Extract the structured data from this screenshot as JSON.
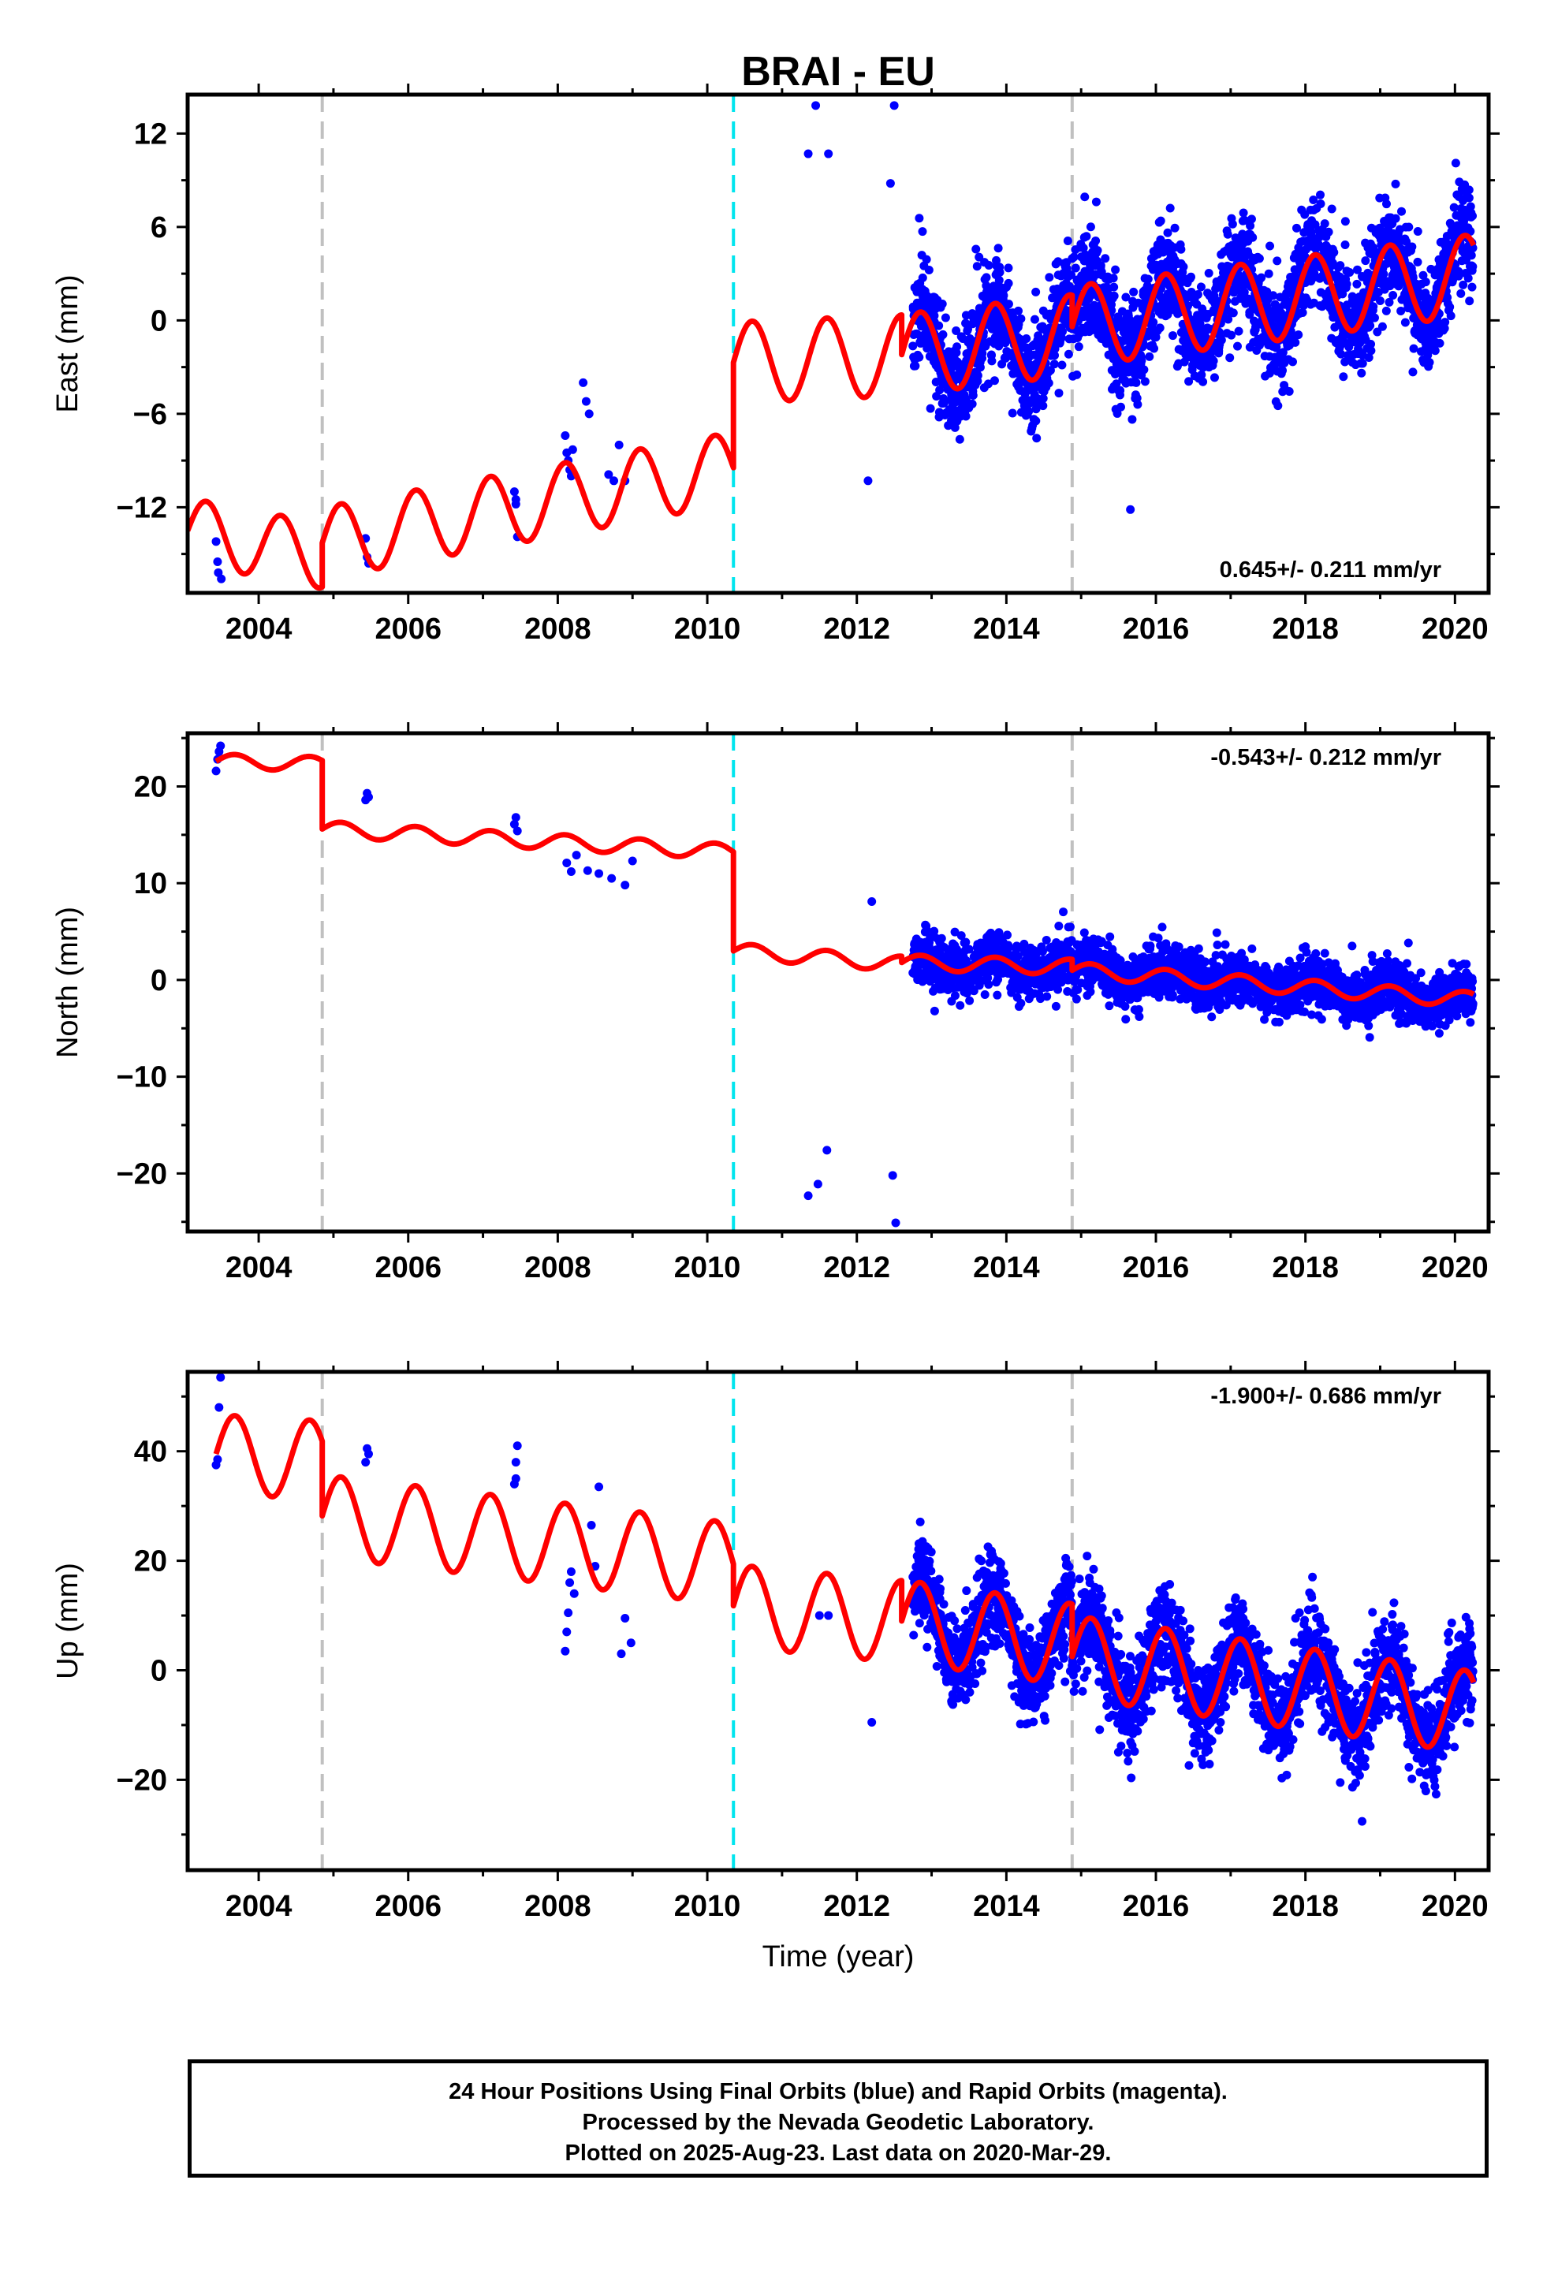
{
  "chart_data": [
    {
      "type": "scatter",
      "id": "east",
      "title": "BRAI - EU",
      "xlabel": "",
      "ylabel": "East (mm)",
      "xlim": [
        2003.05,
        2020.45
      ],
      "ylim": [
        -17.5,
        14.5
      ],
      "xticks": [
        2004,
        2006,
        2008,
        2010,
        2012,
        2014,
        2016,
        2018,
        2020
      ],
      "yticks": [
        -12,
        -6,
        0,
        6,
        12
      ],
      "rate_text": "0.645+/- 0.211 mm/yr",
      "rate_position": "bottom-right",
      "event_lines": [
        {
          "x": 2004.85,
          "style": "gray-dashed"
        },
        {
          "x": 2010.35,
          "style": "cyan-dashed"
        },
        {
          "x": 2014.88,
          "style": "gray-dashed"
        }
      ],
      "model": {
        "segments": [
          {
            "from": 2003.05,
            "to": 2004.85,
            "base_at_from": -13.5,
            "rate": -0.9,
            "amplitude": 2.1,
            "phase": 0.0
          },
          {
            "from": 2004.85,
            "to": 2010.35,
            "base_at_from": -14.3,
            "rate": 0.88,
            "amplitude": 2.3,
            "phase": 0.0
          },
          {
            "from": 2010.35,
            "to": 2012.6,
            "base_at_from": -2.7,
            "rate": 0.2,
            "amplitude": 2.6,
            "phase": 0.0
          },
          {
            "from": 2012.6,
            "to": 2014.88,
            "base_at_from": -2.2,
            "rate": 0.55,
            "amplitude": 2.6,
            "phase": 0.0
          },
          {
            "from": 2014.88,
            "to": 2020.25,
            "base_at_from": -0.4,
            "rate": 0.62,
            "amplitude": 2.6,
            "phase": 0.0
          }
        ]
      },
      "sparse_points": [
        [
          2003.43,
          -14.2
        ],
        [
          2003.45,
          -15.5
        ],
        [
          2003.46,
          -16.2
        ],
        [
          2003.5,
          -16.6
        ],
        [
          2005.43,
          -14.0
        ],
        [
          2005.45,
          -15.2
        ],
        [
          2005.47,
          -15.6
        ],
        [
          2007.42,
          -11.0
        ],
        [
          2007.44,
          -11.8
        ],
        [
          2007.46,
          -13.9
        ],
        [
          2007.44,
          -11.5
        ],
        [
          2008.1,
          -7.4
        ],
        [
          2008.12,
          -8.5
        ],
        [
          2008.14,
          -9.0
        ],
        [
          2008.16,
          -9.6
        ],
        [
          2008.18,
          -10.0
        ],
        [
          2008.2,
          -8.3
        ],
        [
          2008.34,
          -4.0
        ],
        [
          2008.38,
          -5.2
        ],
        [
          2008.42,
          -6.0
        ],
        [
          2008.68,
          -9.9
        ],
        [
          2008.75,
          -10.3
        ],
        [
          2008.82,
          -8.0
        ],
        [
          2008.9,
          -10.3
        ],
        [
          2011.35,
          10.7
        ],
        [
          2011.45,
          13.8
        ],
        [
          2011.62,
          10.7
        ],
        [
          2012.15,
          -10.3
        ],
        [
          2012.45,
          8.8
        ],
        [
          2012.5,
          13.8
        ]
      ],
      "dense_points": {
        "from": 2012.75,
        "to": 2020.24,
        "count": 2600,
        "scatter": 1.7,
        "seed": 11
      }
    },
    {
      "type": "scatter",
      "id": "north",
      "title": "",
      "xlabel": "",
      "ylabel": "North (mm)",
      "xlim": [
        2003.05,
        2020.45
      ],
      "ylim": [
        -26,
        25.5
      ],
      "xticks": [
        2004,
        2006,
        2008,
        2010,
        2012,
        2014,
        2016,
        2018,
        2020
      ],
      "yticks": [
        -20,
        -10,
        0,
        10,
        20
      ],
      "rate_text": "-0.543+/- 0.212 mm/yr",
      "rate_position": "top-right",
      "event_lines": [
        {
          "x": 2004.85,
          "style": "gray-dashed"
        },
        {
          "x": 2010.35,
          "style": "cyan-dashed"
        },
        {
          "x": 2014.88,
          "style": "gray-dashed"
        }
      ],
      "model": {
        "segments": [
          {
            "from": 2003.43,
            "to": 2004.85,
            "base_at_from": 22.6,
            "rate": -0.2,
            "amplitude": 0.75,
            "phase": 0.0
          },
          {
            "from": 2004.85,
            "to": 2010.35,
            "base_at_from": 15.6,
            "rate": -0.43,
            "amplitude": 0.8,
            "phase": 0.0
          },
          {
            "from": 2010.35,
            "to": 2012.6,
            "base_at_from": 3.0,
            "rate": -0.6,
            "amplitude": 0.8,
            "phase": 0.0
          },
          {
            "from": 2012.6,
            "to": 2014.88,
            "base_at_from": 1.8,
            "rate": -0.2,
            "amplitude": 0.8,
            "phase": 0.0
          },
          {
            "from": 2014.88,
            "to": 2020.25,
            "base_at_from": 1.0,
            "rate": -0.57,
            "amplitude": 0.8,
            "phase": 0.0
          }
        ]
      },
      "sparse_points": [
        [
          2003.43,
          21.6
        ],
        [
          2003.45,
          22.8
        ],
        [
          2003.47,
          23.6
        ],
        [
          2003.49,
          24.2
        ],
        [
          2005.43,
          18.6
        ],
        [
          2005.45,
          19.3
        ],
        [
          2005.47,
          18.9
        ],
        [
          2007.42,
          16.1
        ],
        [
          2007.44,
          16.8
        ],
        [
          2007.46,
          15.4
        ],
        [
          2008.12,
          12.1
        ],
        [
          2008.18,
          11.2
        ],
        [
          2008.25,
          12.9
        ],
        [
          2008.4,
          11.3
        ],
        [
          2008.55,
          11.0
        ],
        [
          2008.72,
          10.5
        ],
        [
          2008.9,
          9.8
        ],
        [
          2009.0,
          12.3
        ],
        [
          2011.35,
          -22.3
        ],
        [
          2011.48,
          -21.1
        ],
        [
          2011.6,
          -17.6
        ],
        [
          2012.2,
          8.1
        ],
        [
          2012.48,
          -20.2
        ],
        [
          2012.52,
          -25.1
        ]
      ],
      "dense_points": {
        "from": 2012.75,
        "to": 2020.24,
        "count": 2600,
        "scatter": 1.3,
        "seed": 23
      }
    },
    {
      "type": "scatter",
      "id": "up",
      "title": "",
      "xlabel": "Time (year)",
      "ylabel": "Up (mm)",
      "xlim": [
        2003.05,
        2020.45
      ],
      "ylim": [
        -36.5,
        54.5
      ],
      "xticks": [
        2004,
        2006,
        2008,
        2010,
        2012,
        2014,
        2016,
        2018,
        2020
      ],
      "yticks": [
        -20,
        0,
        20,
        40
      ],
      "rate_text": "-1.900+/- 0.686 mm/yr",
      "rate_position": "top-right",
      "event_lines": [
        {
          "x": 2004.85,
          "style": "gray-dashed"
        },
        {
          "x": 2010.35,
          "style": "cyan-dashed"
        },
        {
          "x": 2014.88,
          "style": "gray-dashed"
        }
      ],
      "model": {
        "segments": [
          {
            "from": 2003.43,
            "to": 2004.85,
            "base_at_from": 39.5,
            "rate": -0.8,
            "amplitude": 7.2,
            "phase": 0.0
          },
          {
            "from": 2004.85,
            "to": 2010.35,
            "base_at_from": 28.2,
            "rate": -1.6,
            "amplitude": 7.5,
            "phase": 0.0
          },
          {
            "from": 2010.35,
            "to": 2012.6,
            "base_at_from": 11.8,
            "rate": -1.3,
            "amplitude": 7.5,
            "phase": 0.0
          },
          {
            "from": 2012.6,
            "to": 2014.88,
            "base_at_from": 9.0,
            "rate": -1.9,
            "amplitude": 7.5,
            "phase": 0.0
          },
          {
            "from": 2014.88,
            "to": 2020.25,
            "base_at_from": 2.5,
            "rate": -1.9,
            "amplitude": 7.5,
            "phase": 0.0
          }
        ]
      },
      "sparse_points": [
        [
          2003.43,
          37.5
        ],
        [
          2003.45,
          38.5
        ],
        [
          2003.47,
          48.0
        ],
        [
          2003.49,
          53.5
        ],
        [
          2005.43,
          38.0
        ],
        [
          2005.45,
          40.5
        ],
        [
          2005.47,
          39.5
        ],
        [
          2007.42,
          34.0
        ],
        [
          2007.44,
          38.0
        ],
        [
          2007.46,
          41.0
        ],
        [
          2007.44,
          35.0
        ],
        [
          2008.1,
          3.5
        ],
        [
          2008.12,
          7.0
        ],
        [
          2008.14,
          10.5
        ],
        [
          2008.16,
          16.0
        ],
        [
          2008.18,
          18.0
        ],
        [
          2008.22,
          14.0
        ],
        [
          2008.45,
          26.5
        ],
        [
          2008.5,
          19.0
        ],
        [
          2008.55,
          33.5
        ],
        [
          2008.85,
          3.0
        ],
        [
          2008.9,
          9.5
        ],
        [
          2008.98,
          5.0
        ],
        [
          2011.5,
          10.0
        ],
        [
          2011.62,
          10.0
        ],
        [
          2012.2,
          -9.5
        ]
      ],
      "dense_points": {
        "from": 2012.75,
        "to": 2020.24,
        "count": 2600,
        "scatter": 4.2,
        "seed": 37
      }
    }
  ],
  "footer": {
    "line1": "24 Hour Positions Using Final Orbits (blue) and Rapid Orbits (magenta).",
    "line2": "Processed by the Nevada Geodetic Laboratory.",
    "line3": "Plotted on 2025-Aug-23. Last data on 2020-Mar-29."
  },
  "colors": {
    "points": "#0000ff",
    "model": "#ff0000",
    "event_gray": "#c0c0c0",
    "event_cyan": "#00e5ee",
    "frame": "#000000"
  }
}
